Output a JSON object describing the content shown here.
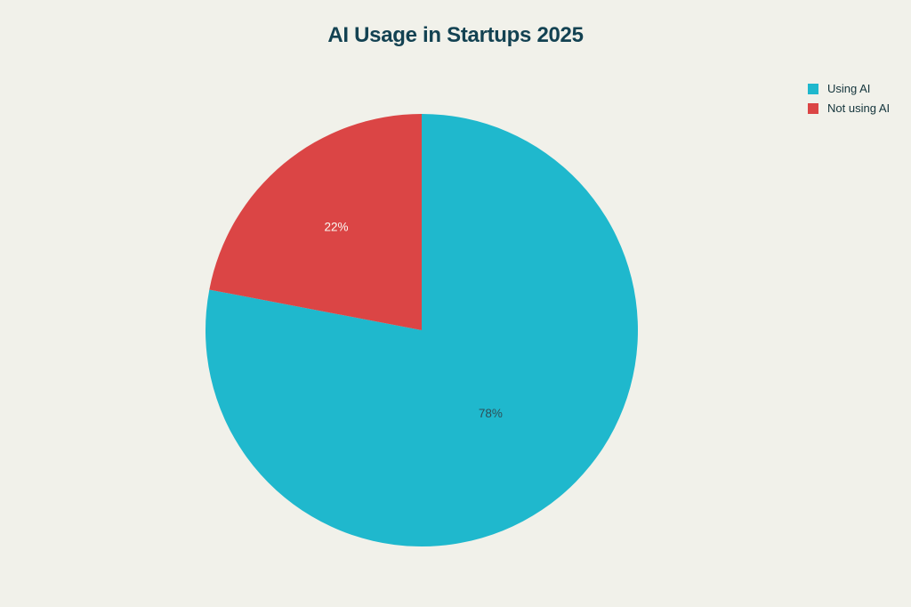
{
  "page": {
    "background_color": "#F1F1EA",
    "text_color": "#13343B"
  },
  "chart_data": {
    "type": "pie",
    "title": "AI Usage in Startups 2025",
    "labels": [
      "Using AI",
      "Not using AI"
    ],
    "values": [
      78,
      22
    ],
    "slice_colors": [
      "#1FB8CD",
      "#DB4545"
    ],
    "slice_label_texts": [
      "78%",
      "22%"
    ],
    "slice_label_colors": [
      "#2E4E56",
      "#FBFAF4"
    ],
    "slice_label_radius_fraction": [
      0.5,
      0.62
    ],
    "start_angle": "12-o-clock",
    "direction": "clockwise",
    "legend_position": "top-right",
    "title_color": "#134252"
  }
}
